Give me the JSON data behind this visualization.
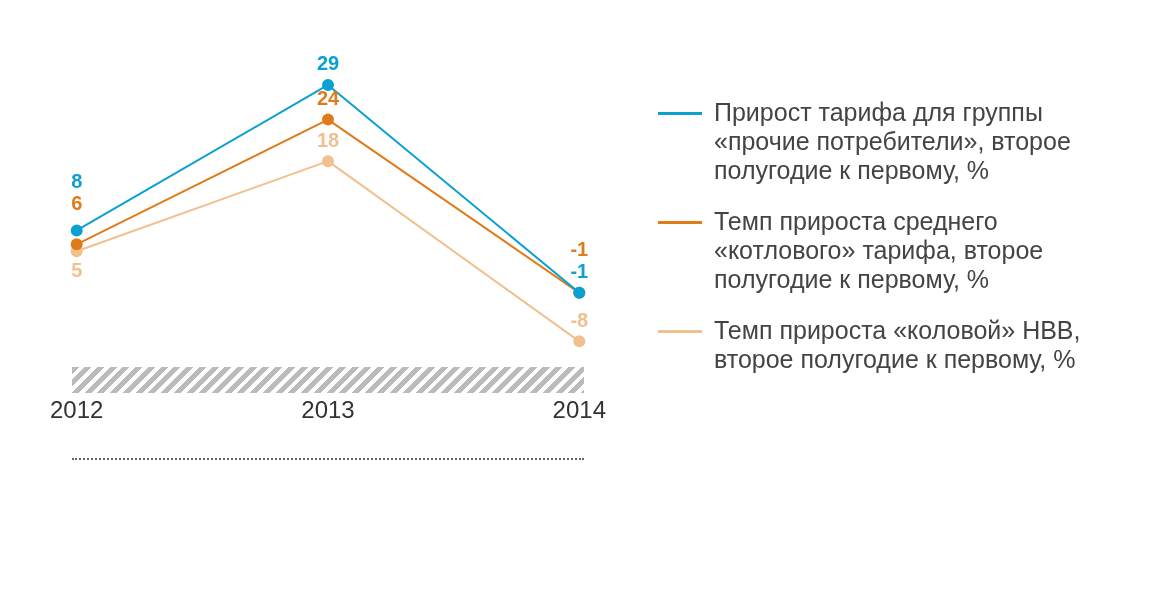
{
  "chart_data": {
    "type": "line",
    "categories": [
      "2012",
      "2013",
      "2014"
    ],
    "series": [
      {
        "name": "Прирост тарифа для группы «прочие потребители», второе полугодие к первому, %",
        "color": "#0aa0d2",
        "values": [
          8,
          29,
          -1
        ]
      },
      {
        "name": "Темп прироста среднего «котлового» тарифа, второе полугодие к первому, %",
        "color": "#e07b1a",
        "values": [
          6,
          24,
          -1
        ]
      },
      {
        "name": "Темп прироста «коловой» НВВ, второе полугодие к первому, %",
        "color": "#f0c08f",
        "values": [
          5,
          18,
          -8
        ]
      }
    ],
    "data_labels": true,
    "marker": "circle",
    "legend": "right",
    "grid": false
  }
}
